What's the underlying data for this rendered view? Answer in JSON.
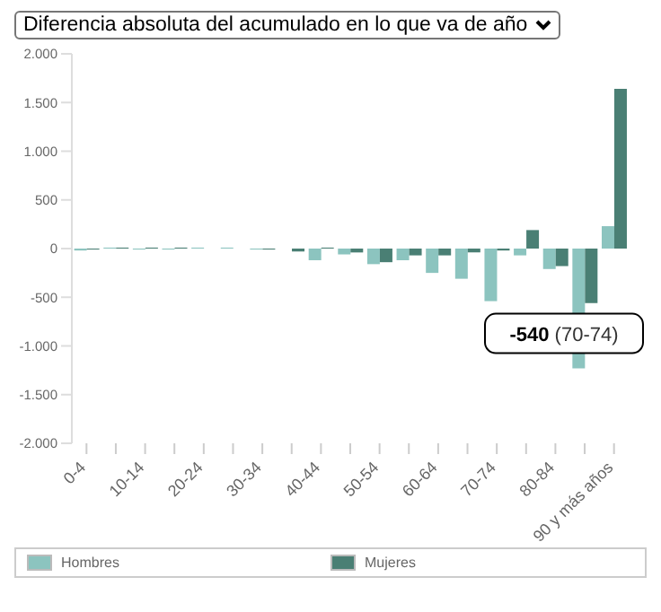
{
  "chart_data": {
    "type": "bar",
    "title": "Diferencia absoluta del acumulado en lo que va de año",
    "categories": [
      "0-4",
      null,
      "10-14",
      null,
      "20-24",
      null,
      "30-34",
      null,
      "40-44",
      null,
      "50-54",
      null,
      "60-64",
      null,
      "70-74",
      null,
      "80-84",
      null,
      "90 y más años"
    ],
    "series": [
      {
        "name": "Hombres",
        "color": "#8cc4bf",
        "values": [
          -20,
          10,
          -10,
          -10,
          10,
          10,
          -10,
          0,
          -120,
          -60,
          -160,
          -120,
          -250,
          -310,
          -540,
          -70,
          -210,
          -1230,
          230
        ]
      },
      {
        "name": "Mujeres",
        "color": "#4a7f74",
        "values": [
          -10,
          10,
          10,
          10,
          0,
          0,
          -10,
          -30,
          10,
          -40,
          -140,
          -70,
          -70,
          -40,
          -20,
          190,
          -180,
          -560,
          1640
        ]
      }
    ],
    "ylim": [
      -2000,
      2000
    ],
    "yticks": [
      {
        "value": -2000,
        "label": "-2.000"
      },
      {
        "value": -1500,
        "label": "-1.500"
      },
      {
        "value": -1000,
        "label": "-1.000"
      },
      {
        "value": -500,
        "label": "-500"
      },
      0,
      {
        "value": 500,
        "label": "500"
      },
      {
        "value": 1000,
        "label": "1.000"
      },
      {
        "value": 1500,
        "label": "1.500"
      },
      {
        "value": 2000,
        "label": "2.000"
      }
    ],
    "grid": false,
    "legend": "bottom",
    "annotations": [
      {
        "text": "-540 (70-74)",
        "x": "70-74",
        "y": -540
      }
    ]
  }
}
